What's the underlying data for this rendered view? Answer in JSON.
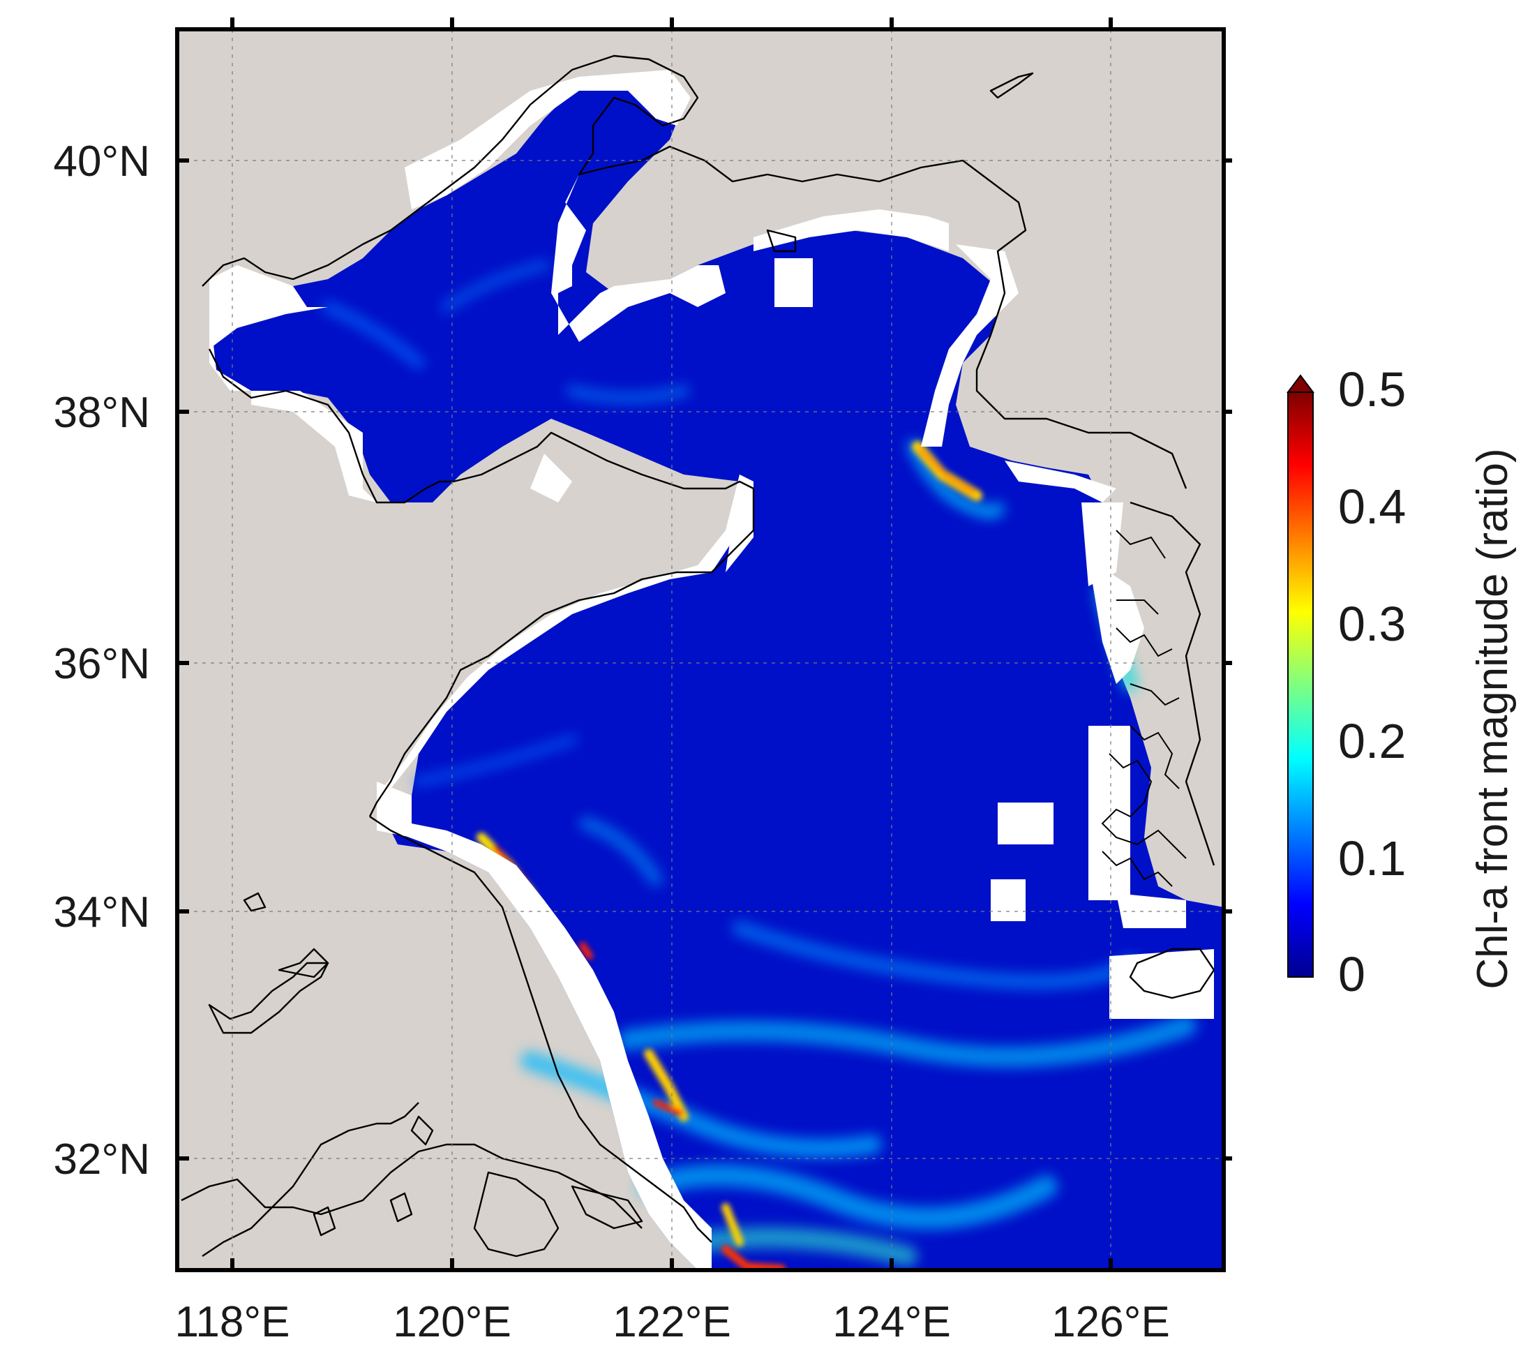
{
  "map": {
    "land_color": "#d7d2cd",
    "ocean_base_color": "#0010c8",
    "coast_color": "#000000",
    "mask_color": "#ffffff",
    "gridline_color": "#7a7a7a",
    "lon_range": [
      117.5,
      127.0
    ],
    "lat_range": [
      31.0,
      41.0
    ],
    "lon_ticks": [
      118,
      120,
      122,
      124,
      126
    ],
    "lat_ticks": [
      32,
      34,
      36,
      38,
      40
    ],
    "x_tick_labels": [
      "118°E",
      "120°E",
      "122°E",
      "124°E",
      "126°E"
    ],
    "y_tick_labels": [
      "32°N",
      "34°N",
      "36°N",
      "38°N",
      "40°N"
    ]
  },
  "colorbar": {
    "title": "Chl-a front magnitude (ratio)",
    "colormap": "jet",
    "range": [
      0,
      0.5
    ],
    "extend": "max",
    "ticks": [
      0,
      0.1,
      0.2,
      0.3,
      0.4,
      0.5
    ],
    "tick_labels": [
      "0",
      "0.1",
      "0.2",
      "0.3",
      "0.4",
      "0.5"
    ]
  }
}
